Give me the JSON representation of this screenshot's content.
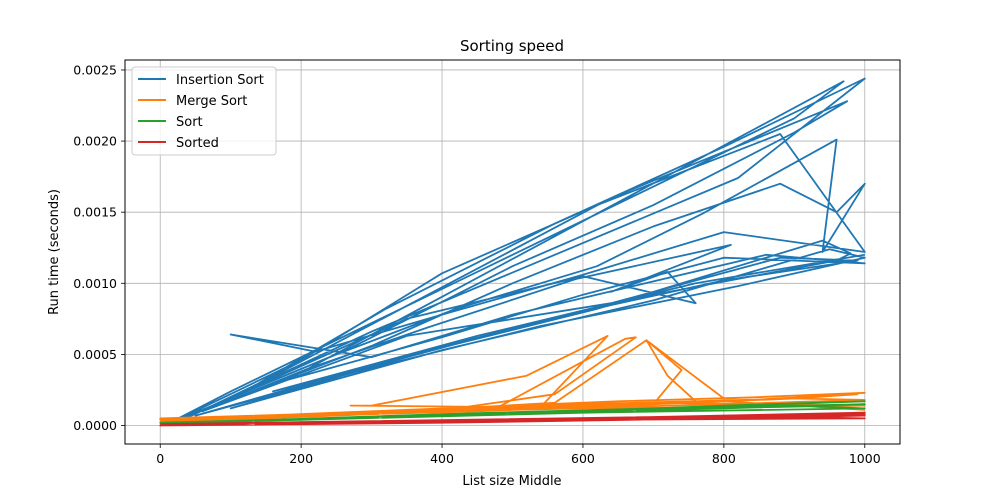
{
  "chart_data": {
    "type": "line",
    "title": "Sorting speed",
    "xlabel": "List size Middle",
    "ylabel": "Run time (seconds)",
    "xlim": [
      -50,
      1050
    ],
    "ylim": [
      -0.00013,
      0.00257
    ],
    "xticks": [
      0,
      200,
      400,
      600,
      800,
      1000
    ],
    "xtick_labels": [
      "0",
      "200",
      "400",
      "600",
      "800",
      "1000"
    ],
    "yticks": [
      0.0,
      0.0005,
      0.001,
      0.0015,
      0.002,
      0.0025
    ],
    "ytick_labels": [
      "0.0000",
      "0.0005",
      "0.0010",
      "0.0015",
      "0.0020",
      "0.0025"
    ],
    "grid": true,
    "legend_position": "top-left",
    "series": [
      {
        "name": "Insertion Sort",
        "color": "#1f77b4",
        "points": [
          [
            10,
            1e-05
          ],
          [
            100,
            0.00024
          ],
          [
            200,
            0.00048
          ],
          [
            300,
            0.00072
          ],
          [
            400,
            0.00096
          ],
          [
            500,
            0.0012
          ],
          [
            600,
            0.00144
          ],
          [
            700,
            0.00168
          ],
          [
            800,
            0.00192
          ],
          [
            900,
            0.00216
          ],
          [
            970,
            0.00242
          ],
          [
            180,
            0.00032
          ],
          [
            400,
            0.00062
          ],
          [
            600,
            0.00092
          ],
          [
            800,
            0.00118
          ],
          [
            1000,
            0.00114
          ],
          [
            860,
            0.0012
          ],
          [
            500,
            0.00078
          ],
          [
            300,
            0.00048
          ],
          [
            100,
            0.00064
          ],
          [
            220,
            0.00052
          ],
          [
            400,
            0.00078
          ],
          [
            600,
            0.00106
          ],
          [
            800,
            0.00136
          ],
          [
            1000,
            0.00122
          ],
          [
            880,
            0.00205
          ],
          [
            620,
            0.00155
          ],
          [
            400,
            0.00107
          ],
          [
            200,
            0.00046
          ],
          [
            20,
            3e-05
          ],
          [
            300,
            0.00056
          ],
          [
            500,
            0.001
          ],
          [
            700,
            0.0014
          ],
          [
            880,
            0.0017
          ],
          [
            960,
            0.0015
          ],
          [
            1000,
            0.0017
          ],
          [
            940,
            0.00122
          ],
          [
            960,
            0.00201
          ],
          [
            770,
            0.00149
          ],
          [
            620,
            0.00112
          ],
          [
            420,
            0.00082
          ],
          [
            240,
            0.00048
          ],
          [
            30,
            5e-05
          ],
          [
            260,
            0.00052
          ],
          [
            500,
            0.00112
          ],
          [
            700,
            0.00155
          ],
          [
            900,
            0.00206
          ],
          [
            975,
            0.00228
          ],
          [
            640,
            0.0016
          ],
          [
            380,
            0.00092
          ],
          [
            150,
            0.00032
          ],
          [
            40,
            6e-05
          ],
          [
            300,
            0.00066
          ],
          [
            560,
            0.0012
          ],
          [
            820,
            0.00174
          ],
          [
            1000,
            0.00244
          ],
          [
            800,
            0.00196
          ],
          [
            560,
            0.00142
          ],
          [
            320,
            0.00082
          ],
          [
            120,
            0.00024
          ],
          [
            350,
            0.00075
          ],
          [
            600,
            0.00105
          ],
          [
            760,
            0.00086
          ],
          [
            720,
            0.00108
          ],
          [
            640,
            0.00094
          ],
          [
            810,
            0.00127
          ],
          [
            590,
            0.00103
          ],
          [
            380,
            0.00069
          ],
          [
            210,
            0.0004
          ],
          [
            60,
            0.0001
          ],
          [
            350,
            0.00063
          ],
          [
            640,
            0.00086
          ],
          [
            880,
            0.00118
          ],
          [
            990,
            0.00116
          ],
          [
            800,
            0.00102
          ],
          [
            560,
            0.00076
          ],
          [
            320,
            0.00044
          ],
          [
            100,
            0.00012
          ],
          [
            400,
            0.00053
          ],
          [
            700,
            0.00088
          ],
          [
            950,
            0.00124
          ],
          [
            1000,
            0.00118
          ],
          [
            820,
            0.00098
          ],
          [
            540,
            0.0007
          ],
          [
            280,
            0.00038
          ],
          [
            50,
            7e-05
          ],
          [
            320,
            0.00045
          ],
          [
            620,
            0.00082
          ],
          [
            940,
            0.0013
          ],
          [
            980,
            0.00121
          ],
          [
            960,
            0.00116
          ],
          [
            700,
            0.00092
          ],
          [
            420,
            0.00058
          ],
          [
            160,
            0.00024
          ],
          [
            450,
            0.00063
          ],
          [
            760,
            0.001
          ],
          [
            1000,
            0.0012
          ]
        ]
      },
      {
        "name": "Merge Sort",
        "color": "#ff7f0e",
        "points": [
          [
            0,
            3e-05
          ],
          [
            150,
            5e-05
          ],
          [
            300,
            8e-05
          ],
          [
            450,
            0.0001
          ],
          [
            600,
            0.00013
          ],
          [
            750,
            0.00016
          ],
          [
            900,
            0.00019
          ],
          [
            990,
            0.00022
          ],
          [
            800,
            0.00017
          ],
          [
            600,
            0.00014
          ],
          [
            400,
            0.0001
          ],
          [
            200,
            6e-05
          ],
          [
            0,
            4e-05
          ],
          [
            200,
            7e-05
          ],
          [
            400,
            0.0001
          ],
          [
            540,
            0.00013
          ],
          [
            635,
            0.00063
          ],
          [
            520,
            0.00035
          ],
          [
            300,
            0.00014
          ],
          [
            270,
            0.00014
          ],
          [
            480,
            0.00013
          ],
          [
            660,
            0.00061
          ],
          [
            675,
            0.00062
          ],
          [
            560,
            0.00022
          ],
          [
            420,
            0.00012
          ],
          [
            560,
            0.00016
          ],
          [
            690,
            0.0006
          ],
          [
            740,
            0.00039
          ],
          [
            700,
            0.00015
          ],
          [
            760,
            0.00017
          ],
          [
            720,
            0.00035
          ],
          [
            690,
            0.0006
          ],
          [
            800,
            0.00019
          ],
          [
            1000,
            0.00023
          ],
          [
            850,
            0.0002
          ],
          [
            650,
            0.00017
          ],
          [
            450,
            0.00013
          ],
          [
            250,
            9e-05
          ],
          [
            50,
            5e-05
          ],
          [
            300,
            0.0001
          ],
          [
            600,
            0.00015
          ],
          [
            900,
            0.00019
          ],
          [
            1000,
            0.00018
          ],
          [
            800,
            0.00015
          ],
          [
            500,
            0.00011
          ],
          [
            200,
            7e-05
          ],
          [
            0,
            5e-05
          ],
          [
            350,
            0.0001
          ],
          [
            700,
            0.00016
          ],
          [
            1000,
            0.00014
          ],
          [
            880,
            0.00013
          ],
          [
            600,
            0.00012
          ],
          [
            300,
            9e-05
          ],
          [
            10,
            4e-05
          ],
          [
            400,
            0.00011
          ],
          [
            800,
            0.00017
          ],
          [
            1000,
            0.00011
          ]
        ]
      },
      {
        "name": "Sort",
        "color": "#2ca02c",
        "points": [
          [
            0,
            2e-05
          ],
          [
            200,
            4e-05
          ],
          [
            400,
            7e-05
          ],
          [
            600,
            0.0001
          ],
          [
            800,
            0.00014
          ],
          [
            1000,
            0.00017
          ],
          [
            700,
            0.00012
          ],
          [
            400,
            8e-05
          ],
          [
            100,
            3e-05
          ],
          [
            500,
            9e-05
          ],
          [
            900,
            0.00014
          ],
          [
            1000,
            0.00012
          ],
          [
            600,
            9e-05
          ],
          [
            200,
            4e-05
          ],
          [
            0,
            2e-05
          ],
          [
            400,
            7e-05
          ],
          [
            800,
            0.00012
          ],
          [
            1000,
            0.00015
          ],
          [
            500,
            9e-05
          ],
          [
            0,
            1e-05
          ]
        ]
      },
      {
        "name": "Sorted",
        "color": "#d62728",
        "points": [
          [
            0,
            1e-05
          ],
          [
            200,
            2e-05
          ],
          [
            400,
            3e-05
          ],
          [
            600,
            4e-05
          ],
          [
            800,
            6e-05
          ],
          [
            1000,
            8e-05
          ],
          [
            700,
            5e-05
          ],
          [
            400,
            3e-05
          ],
          [
            100,
            1e-05
          ],
          [
            500,
            3e-05
          ],
          [
            900,
            6e-05
          ],
          [
            1000,
            5e-05
          ],
          [
            600,
            4e-05
          ],
          [
            200,
            2e-05
          ],
          [
            0,
            0.0
          ],
          [
            400,
            2e-05
          ],
          [
            800,
            5e-05
          ],
          [
            1000,
            7e-05
          ],
          [
            500,
            4e-05
          ],
          [
            50,
            1e-05
          ],
          [
            600,
            5e-05
          ],
          [
            1000,
            9e-05
          ],
          [
            700,
            6e-05
          ],
          [
            300,
            3e-05
          ],
          [
            0,
            1e-05
          ]
        ]
      }
    ]
  }
}
